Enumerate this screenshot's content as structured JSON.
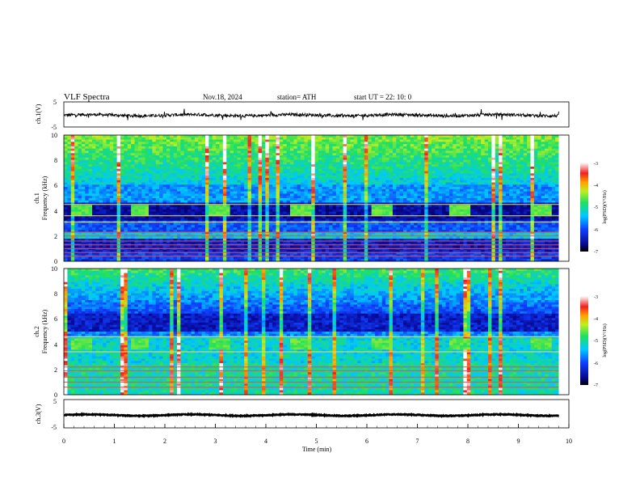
{
  "header": {
    "title": "VLF  Spectra",
    "date": "Nov.18, 2024",
    "station": "station= ATH",
    "start_ut": "start  UT  =    22: 10: 0"
  },
  "chart_data": [
    {
      "type": "line",
      "ylabel": "ch.1(V)",
      "ytick_labels": [
        "5",
        "-5"
      ],
      "ylim": [
        -5,
        5
      ],
      "xlim": [
        0,
        10
      ],
      "baseline_value": -0.3,
      "noise_amplitude": 0.6,
      "color": "#000000"
    },
    {
      "type": "heatmap",
      "ylabel_channel": "ch.1",
      "ylabel": "Frequency  (kHz)",
      "ytick_labels": [
        "0",
        "2",
        "4",
        "6",
        "8",
        "10"
      ],
      "ylim": [
        0,
        10
      ],
      "xlim": [
        0,
        9.8
      ],
      "colorbar_label": "log(PSD)(V²/Hz)",
      "colorbar_ticks": [
        "-3",
        "-4",
        "-5",
        "-6",
        "-7"
      ],
      "colorbar_range": [
        -7,
        -3
      ],
      "lines_khz": [
        0.4,
        0.7,
        1.0,
        1.3,
        1.6,
        2.0,
        2.3,
        3.1,
        3.6,
        4.5
      ],
      "bursts_start_min": [
        0.15,
        1.3,
        2.9,
        4.5,
        6.1,
        7.65,
        9.25
      ],
      "bursts_band_khz": [
        3.5,
        4.4
      ]
    },
    {
      "type": "heatmap",
      "ylabel_channel": "ch.2",
      "ylabel": "Frequency  (kHz)",
      "ytick_labels": [
        "0",
        "2",
        "4",
        "6",
        "8",
        "10"
      ],
      "ylim": [
        0,
        10
      ],
      "xlim": [
        0,
        9.8
      ],
      "colorbar_label": "log(PSD)(V²/Hz)",
      "colorbar_ticks": [
        "-3",
        "-4",
        "-5",
        "-6",
        "-7"
      ],
      "colorbar_range": [
        -7,
        -3
      ],
      "lines_khz": [
        0.6,
        1.0,
        1.4,
        1.9,
        2.2,
        3.4,
        4.6
      ],
      "bursts_start_min": [
        0.15,
        1.3,
        2.9,
        4.5,
        6.1,
        7.65,
        9.25
      ],
      "bursts_band_khz": [
        3.5,
        4.4
      ]
    },
    {
      "type": "line",
      "ylabel": "ch.3(V)",
      "ytick_labels": [
        "5",
        "-5"
      ],
      "ylim": [
        -5,
        5
      ],
      "xlim": [
        0,
        10
      ],
      "baseline_value": -0.5,
      "noise_amplitude": 0.15,
      "color": "#000000",
      "xlabel": "Time  (min)",
      "xtick_labels": [
        "0",
        "1",
        "2",
        "3",
        "4",
        "5",
        "6",
        "7",
        "8",
        "9",
        "10"
      ]
    }
  ]
}
